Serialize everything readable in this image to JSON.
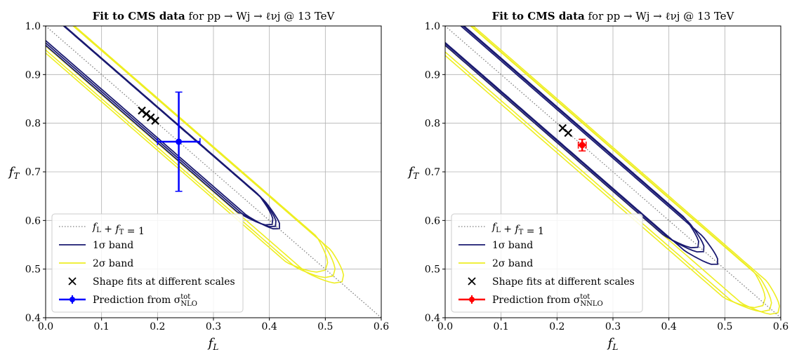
{
  "colors": {
    "one_sigma": "#191970",
    "two_sigma": "#eeee22",
    "diagonal": "#808080",
    "grid": "#b0b0b0",
    "nlo_point": "#0000ff",
    "nnlo_point": "#ff0000",
    "scale_fits": "#000000"
  },
  "chart_data": [
    {
      "type": "scatter",
      "title_bold": "Fit to CMS data",
      "title_rest": " for pp → Wj → ℓνj @ 13 TeV",
      "xlabel": "f_L",
      "ylabel": "f_T",
      "xlim": [
        0.0,
        0.6
      ],
      "ylim": [
        0.4,
        1.0
      ],
      "xticks": [
        "0.0",
        "0.1",
        "0.2",
        "0.3",
        "0.4",
        "0.5",
        "0.6"
      ],
      "yticks": [
        "0.4",
        "0.5",
        "0.6",
        "0.7",
        "0.8",
        "0.9",
        "1.0"
      ],
      "grid": true,
      "legend_position": "lower-left",
      "legend": [
        "f_L + f_T = 1",
        "1σ band",
        "2σ band",
        "Shape fits at different scales",
        "Prediction from σ^tot_NLO"
      ],
      "diagonal": {
        "x": [
          0.0,
          0.6
        ],
        "y": [
          1.0,
          0.4
        ]
      },
      "scale_fits": [
        {
          "x": 0.172,
          "y": 0.826
        },
        {
          "x": 0.18,
          "y": 0.819
        },
        {
          "x": 0.188,
          "y": 0.812
        },
        {
          "x": 0.196,
          "y": 0.805
        }
      ],
      "prediction": {
        "x": 0.238,
        "y": 0.762,
        "xerr": 0.038,
        "yerr": 0.102
      },
      "one_sigma_contours": [
        {
          "tip": [
            0.405,
            0.592
          ],
          "half_width": 0.026
        },
        {
          "tip": [
            0.411,
            0.588
          ],
          "half_width": 0.024
        },
        {
          "tip": [
            0.418,
            0.583
          ],
          "half_width": 0.022
        }
      ],
      "two_sigma_contours": [
        {
          "tip": [
            0.5,
            0.498
          ],
          "half_width": 0.038
        },
        {
          "tip": [
            0.514,
            0.486
          ],
          "half_width": 0.035
        },
        {
          "tip": [
            0.53,
            0.474
          ],
          "half_width": 0.032
        }
      ]
    },
    {
      "type": "scatter",
      "title_bold": "Fit to CMS data",
      "title_rest": " for pp → Wj → ℓνj @ 13 TeV",
      "xlabel": "f_L",
      "ylabel": "f_T",
      "xlim": [
        0.0,
        0.6
      ],
      "ylim": [
        0.4,
        1.0
      ],
      "xticks": [
        "0.0",
        "0.1",
        "0.2",
        "0.3",
        "0.4",
        "0.5",
        "0.6"
      ],
      "yticks": [
        "0.4",
        "0.5",
        "0.6",
        "0.7",
        "0.8",
        "0.9",
        "1.0"
      ],
      "grid": true,
      "legend_position": "lower-left",
      "legend": [
        "f_L + f_T = 1",
        "1σ band",
        "2σ band",
        "Shape fits at different scales",
        "Prediction from σ^tot_NNLO"
      ],
      "diagonal": {
        "x": [
          0.0,
          0.6
        ],
        "y": [
          1.0,
          0.4
        ]
      },
      "scale_fits": [
        {
          "x": 0.21,
          "y": 0.79
        },
        {
          "x": 0.22,
          "y": 0.78
        }
      ],
      "prediction": {
        "x": 0.245,
        "y": 0.755,
        "xerr": 0.007,
        "yerr": 0.012
      },
      "one_sigma_contours": [
        {
          "tip": [
            0.452,
            0.545
          ],
          "half_width": 0.026
        },
        {
          "tip": [
            0.462,
            0.536
          ],
          "half_width": 0.024
        },
        {
          "tip": [
            0.487,
            0.51
          ],
          "half_width": 0.022
        }
      ],
      "two_sigma_contours": [
        {
          "tip": [
            0.568,
            0.425
          ],
          "half_width": 0.038
        },
        {
          "tip": [
            0.58,
            0.416
          ],
          "half_width": 0.035
        },
        {
          "tip": [
            0.595,
            0.41
          ],
          "half_width": 0.032
        }
      ]
    }
  ]
}
